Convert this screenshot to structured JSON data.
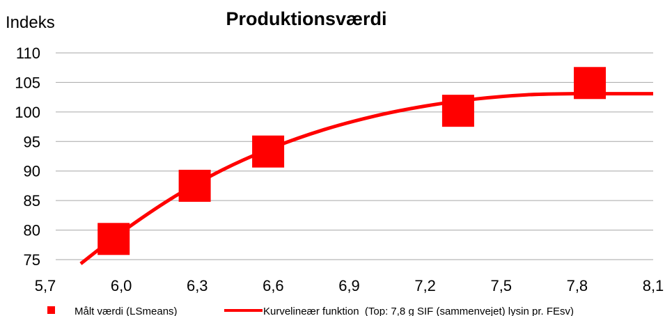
{
  "chart_data": {
    "type": "scatter",
    "title": "Produktionsværdi",
    "ylabel": "Indeks",
    "xlabel": "",
    "xlim": [
      5.7,
      8.1
    ],
    "ylim": [
      75,
      110
    ],
    "x_ticks": [
      "5,7",
      "6,0",
      "6,3",
      "6,6",
      "6,9",
      "7,2",
      "7,5",
      "7,8",
      "8,1"
    ],
    "x_tick_values": [
      5.7,
      6.0,
      6.3,
      6.6,
      6.9,
      7.2,
      7.5,
      7.8,
      8.1
    ],
    "y_ticks": [
      "110",
      "105",
      "100",
      "95",
      "90",
      "85",
      "80",
      "75"
    ],
    "y_tick_values": [
      110,
      105,
      100,
      95,
      90,
      85,
      80,
      75
    ],
    "grid": true,
    "legend_position": "bottom",
    "series": [
      {
        "name": "Målt værdi (LSmeans)",
        "kind": "markers",
        "color": "#ff0000",
        "x": [
          5.97,
          6.29,
          6.58,
          7.33,
          7.85
        ],
        "y": [
          78.5,
          87.5,
          93.3,
          100.2,
          104.9
        ]
      },
      {
        "name": "Kurvelineær funktion  (Top: 7,8 g SIF (sammenvejet) lysin pr. FEsv)",
        "kind": "line",
        "color": "#ff0000",
        "x": [
          5.84,
          6.0,
          6.2,
          6.4,
          6.6,
          6.8,
          7.0,
          7.2,
          7.4,
          7.6,
          7.8,
          7.9,
          8.1
        ],
        "y": [
          74.3,
          79.6,
          85.4,
          90.2,
          94.0,
          97.0,
          99.3,
          101.0,
          102.2,
          102.9,
          103.1,
          103.1,
          103.1
        ]
      }
    ]
  }
}
